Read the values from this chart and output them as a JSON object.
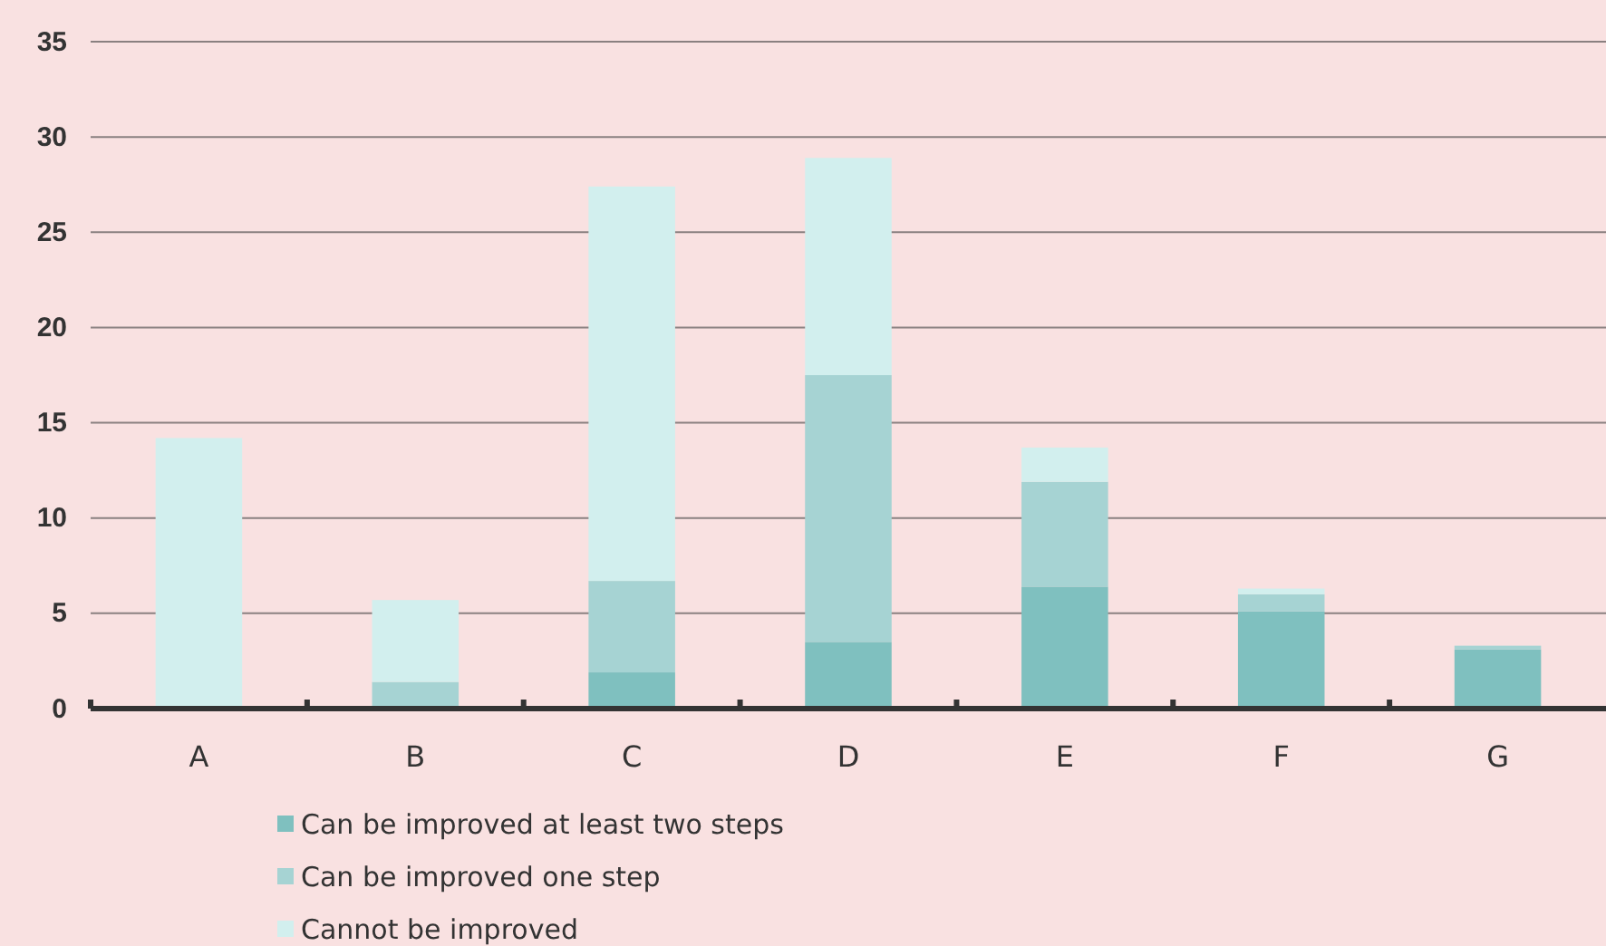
{
  "chart_data": {
    "type": "bar",
    "stacked": true,
    "categories": [
      "A",
      "B",
      "C",
      "D",
      "E",
      "F",
      "G"
    ],
    "series": [
      {
        "name": "Can be improved at least two steps",
        "color": "#7fc0bf",
        "values": [
          0,
          0,
          1.9,
          3.5,
          6.4,
          5.1,
          3.1
        ]
      },
      {
        "name": "Can be improved one step",
        "color": "#a6d3d3",
        "values": [
          0,
          1.4,
          4.8,
          14.0,
          5.5,
          0.9,
          0.2
        ]
      },
      {
        "name": "Cannot be improved",
        "color": "#d2efee",
        "values": [
          14.2,
          4.3,
          20.7,
          11.4,
          1.8,
          0.3,
          0
        ]
      }
    ],
    "ylim": [
      0,
      35
    ],
    "yticks": [
      0,
      5,
      10,
      15,
      20,
      25,
      30,
      35
    ],
    "grid": "y",
    "legend": "bottom"
  }
}
